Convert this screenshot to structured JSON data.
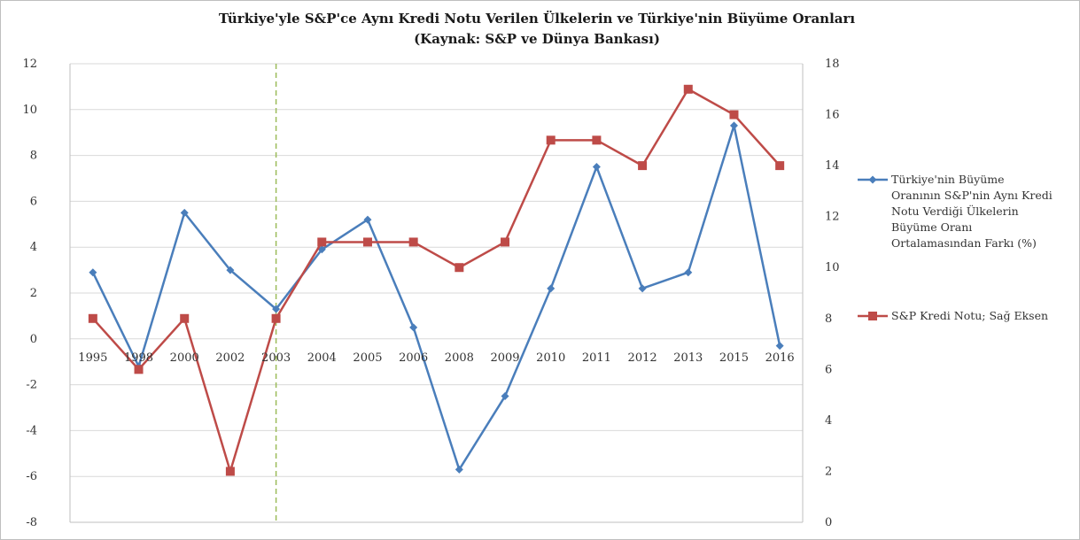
{
  "chart_data": {
    "type": "line",
    "title": "Türkiye'yle S&P'ce Aynı Kredi Notu Verilen Ülkelerin ve Türkiye'nin Büyüme Oranları",
    "subtitle": "(Kaynak: S&P ve Dünya Bankası)",
    "categories": [
      "1995",
      "1998",
      "2000",
      "2002",
      "2003",
      "2004",
      "2005",
      "2006",
      "2008",
      "2009",
      "2010",
      "2011",
      "2012",
      "2013",
      "2015",
      "2016"
    ],
    "y_left": {
      "range": [
        -8,
        12
      ],
      "ticks": [
        "-8",
        "-6",
        "-4",
        "-2",
        "0",
        "2",
        "4",
        "6",
        "8",
        "10",
        "12"
      ]
    },
    "y_right": {
      "range": [
        0,
        18
      ],
      "ticks": [
        "0",
        "2",
        "4",
        "6",
        "8",
        "10",
        "12",
        "14",
        "16",
        "18"
      ]
    },
    "series": [
      {
        "name_lines": [
          "Türkiye'nin Büyüme",
          "Oranının S&P'nin Aynı Kredi",
          "Notu Verdiği Ülkelerin",
          "Büyüme Oranı",
          "Ortalamasından Farkı (%)"
        ],
        "axis": "left",
        "color": "#4a7ebb",
        "marker": "diamond",
        "values": [
          2.9,
          -1.2,
          5.5,
          3.0,
          1.3,
          3.9,
          5.2,
          0.5,
          -5.7,
          -2.5,
          2.2,
          7.5,
          2.2,
          2.9,
          9.3,
          -0.3
        ]
      },
      {
        "name_lines": [
          "S&P Kredi Notu; Sağ Eksen"
        ],
        "axis": "right",
        "color": "#be4b48",
        "marker": "square",
        "values": [
          8,
          6,
          8,
          2,
          8,
          11,
          11,
          11,
          10,
          11,
          15,
          15,
          14,
          17,
          16,
          14
        ]
      }
    ],
    "reference_line": {
      "category": "2003",
      "color": "#9bbb59",
      "style": "dashed"
    },
    "grid": true,
    "legend_position": "right"
  }
}
